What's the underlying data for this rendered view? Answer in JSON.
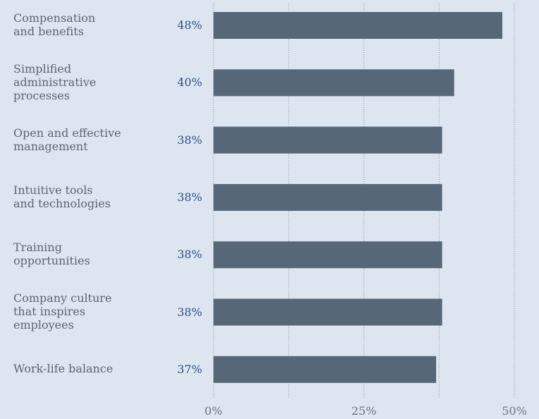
{
  "chart_data": {
    "type": "barh",
    "categories": [
      "Compensation\nand benefits",
      "Simplified\nadministrative\nprocesses",
      "Open and effective\nmanagement",
      "Intuitive tools\nand technologies",
      "Training\nopportunities",
      "Company culture\nthat inspires\nemployees",
      "Work-life balance"
    ],
    "values": [
      48,
      40,
      38,
      38,
      38,
      38,
      37
    ],
    "value_labels": [
      "48%",
      "40%",
      "38%",
      "38%",
      "38%",
      "38%",
      "37%"
    ],
    "color": "#566778",
    "xlim": [
      0,
      50
    ],
    "xticks": [
      {
        "value": 0,
        "label": "0%"
      },
      {
        "value": 25,
        "label": "25%"
      },
      {
        "value": 50,
        "label": "50%"
      }
    ],
    "xminorticks": [
      12.5,
      37.5
    ],
    "grid": true
  }
}
